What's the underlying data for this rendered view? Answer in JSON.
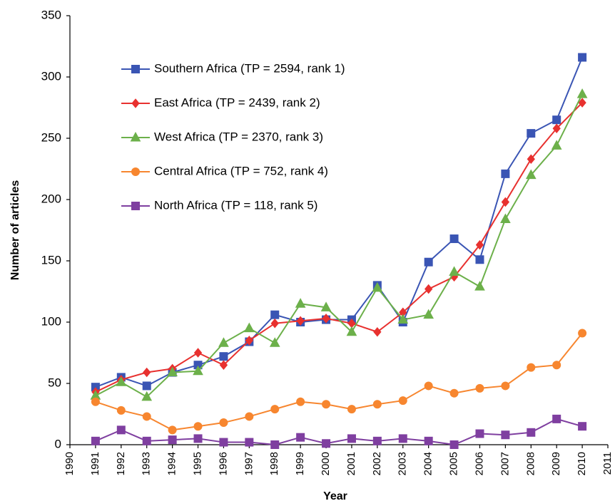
{
  "chart_data": {
    "type": "line",
    "x_label": "Year",
    "y_label": "Number of articles",
    "x": [
      1991,
      1992,
      1993,
      1994,
      1995,
      1996,
      1997,
      1998,
      1999,
      2000,
      2001,
      2002,
      2003,
      2004,
      2005,
      2006,
      2007,
      2008,
      2009,
      2010
    ],
    "xlim": [
      1990,
      2011
    ],
    "xticks": [
      1990,
      1991,
      1992,
      1993,
      1994,
      1995,
      1996,
      1997,
      1998,
      1999,
      2000,
      2001,
      2002,
      2003,
      2004,
      2005,
      2006,
      2007,
      2008,
      2009,
      2010,
      2011
    ],
    "ylim": [
      0,
      350
    ],
    "yticks": [
      0,
      50,
      100,
      150,
      200,
      250,
      300,
      350
    ],
    "legend": "upper-left",
    "series": [
      {
        "name": "Southern Africa (TP = 2594, rank 1)",
        "color": "#3a55b4",
        "marker": "square",
        "values": [
          47,
          55,
          48,
          59,
          65,
          72,
          84,
          106,
          100,
          102,
          102,
          130,
          100,
          149,
          168,
          151,
          221,
          254,
          265,
          316
        ]
      },
      {
        "name": "East Africa (TP = 2439, rank 2)",
        "color": "#e8312f",
        "marker": "diamond",
        "values": [
          43,
          53,
          59,
          62,
          75,
          65,
          85,
          99,
          101,
          103,
          99,
          92,
          108,
          127,
          137,
          163,
          198,
          233,
          258,
          279
        ]
      },
      {
        "name": "West Africa (TP = 2370, rank 3)",
        "color": "#6cb04a",
        "marker": "triangle",
        "values": [
          40,
          51,
          39,
          59,
          60,
          83,
          95,
          83,
          115,
          112,
          92,
          128,
          102,
          106,
          141,
          129,
          184,
          220,
          244,
          286
        ]
      },
      {
        "name": "Central Africa (TP = 752, rank 4)",
        "color": "#f7862f",
        "marker": "circle",
        "values": [
          35,
          28,
          23,
          12,
          15,
          18,
          23,
          29,
          35,
          33,
          29,
          33,
          36,
          48,
          42,
          46,
          48,
          63,
          65,
          91
        ]
      },
      {
        "name": "North Africa (TP = 118, rank 5)",
        "color": "#7f3fa0",
        "marker": "square",
        "values": [
          3,
          12,
          3,
          4,
          5,
          2,
          2,
          0,
          6,
          1,
          5,
          3,
          5,
          3,
          0,
          9,
          8,
          10,
          21,
          15
        ]
      }
    ]
  }
}
